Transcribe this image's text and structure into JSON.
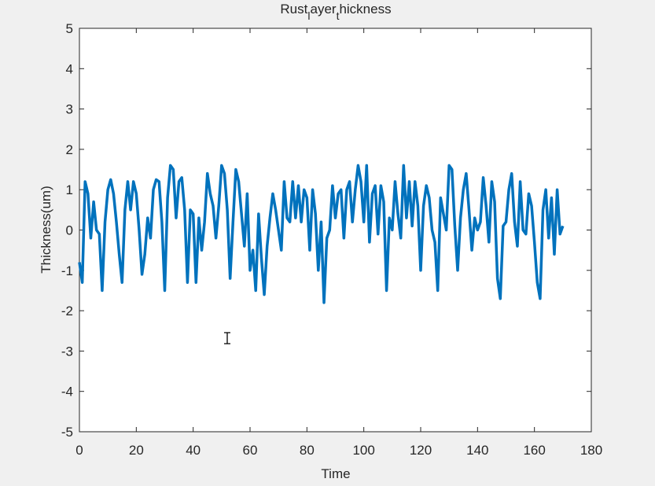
{
  "chart_data": {
    "type": "line",
    "title": [
      "Rust",
      "l",
      "ayer",
      "t",
      "hickness"
    ],
    "xlabel": "Time",
    "ylabel": "Thickness(um)",
    "xlim": [
      0,
      180
    ],
    "xticks": [
      0,
      20,
      40,
      60,
      80,
      100,
      120,
      140,
      160,
      180
    ],
    "ylim": [
      -5,
      5
    ],
    "yticks": [
      -5,
      -4,
      -3,
      -2,
      -1,
      0,
      1,
      2,
      3,
      4,
      5
    ],
    "x": [
      0,
      1,
      2,
      3,
      4,
      5,
      6,
      7,
      8,
      9,
      10,
      11,
      12,
      13,
      14,
      15,
      16,
      17,
      18,
      19,
      20,
      21,
      22,
      23,
      24,
      25,
      26,
      27,
      28,
      29,
      30,
      31,
      32,
      33,
      34,
      35,
      36,
      37,
      38,
      39,
      40,
      41,
      42,
      43,
      44,
      45,
      46,
      47,
      48,
      49,
      50,
      51,
      52,
      53,
      54,
      55,
      56,
      57,
      58,
      59,
      60,
      61,
      62,
      63,
      64,
      65,
      66,
      67,
      68,
      69,
      70,
      71,
      72,
      73,
      74,
      75,
      76,
      77,
      78,
      79,
      80,
      81,
      82,
      83,
      84,
      85,
      86,
      87,
      88,
      89,
      90,
      91,
      92,
      93,
      94,
      95,
      96,
      97,
      98,
      99,
      100,
      101,
      102,
      103,
      104,
      105,
      106,
      107,
      108,
      109,
      110,
      111,
      112,
      113,
      114,
      115,
      116,
      117,
      118,
      119,
      120,
      121,
      122,
      123,
      124,
      125,
      126,
      127,
      128,
      129,
      130,
      131,
      132,
      133,
      134,
      135,
      136,
      137,
      138,
      139,
      140,
      141,
      142,
      143,
      144,
      145,
      146,
      147,
      148,
      149,
      150,
      151,
      152,
      153,
      154,
      155,
      156,
      157,
      158,
      159,
      160,
      161,
      162,
      163,
      164,
      165,
      166,
      167,
      168,
      169,
      170
    ],
    "series": [
      {
        "color": "#0072bd",
        "values": [
          -0.8,
          -1.3,
          1.2,
          0.9,
          -0.2,
          0.7,
          0.0,
          -0.1,
          -1.5,
          0.2,
          1.0,
          1.25,
          0.9,
          0.2,
          -0.6,
          -1.3,
          0.5,
          1.2,
          0.5,
          1.2,
          0.9,
          0.0,
          -1.1,
          -0.6,
          0.3,
          -0.2,
          1.0,
          1.25,
          1.2,
          0.2,
          -1.5,
          0.8,
          1.6,
          1.5,
          0.3,
          1.2,
          1.3,
          0.5,
          -1.3,
          0.5,
          0.4,
          -1.3,
          0.3,
          -0.5,
          0.2,
          1.4,
          0.9,
          0.6,
          -0.2,
          0.6,
          1.6,
          1.4,
          0.5,
          -1.2,
          0.2,
          1.5,
          1.2,
          0.4,
          -0.4,
          0.9,
          -1.0,
          -0.5,
          -1.5,
          0.4,
          -0.7,
          -1.6,
          -0.4,
          0.3,
          0.9,
          0.5,
          0.0,
          -0.5,
          1.2,
          0.3,
          0.2,
          1.2,
          0.3,
          1.1,
          0.2,
          1.0,
          0.8,
          -0.5,
          1.0,
          0.4,
          -1.0,
          0.2,
          -1.8,
          -0.2,
          0.0,
          1.1,
          0.3,
          0.9,
          1.0,
          -0.2,
          1.0,
          1.2,
          0.2,
          1.0,
          1.6,
          1.2,
          0.2,
          1.6,
          -0.3,
          0.9,
          1.1,
          -0.1,
          1.1,
          0.7,
          -1.5,
          0.3,
          0.0,
          1.2,
          0.4,
          -0.2,
          1.6,
          0.3,
          1.2,
          0.1,
          1.2,
          0.6,
          -1.0,
          0.6,
          1.1,
          0.8,
          0.0,
          -0.3,
          -1.5,
          0.8,
          0.4,
          0.0,
          1.6,
          1.5,
          0.1,
          -1.0,
          0.3,
          1.0,
          1.4,
          0.5,
          -0.5,
          0.3,
          0.0,
          0.2,
          1.3,
          0.6,
          -0.3,
          1.2,
          0.7,
          -1.2,
          -1.7,
          0.1,
          0.2,
          1.0,
          1.4,
          0.2,
          -0.4,
          1.2,
          0.0,
          -0.1,
          0.9,
          0.6,
          -0.3,
          -1.3,
          -1.7,
          0.5,
          1.0,
          -0.2,
          0.8,
          -0.6,
          1.0,
          -0.1,
          0.1
        ]
      }
    ]
  }
}
